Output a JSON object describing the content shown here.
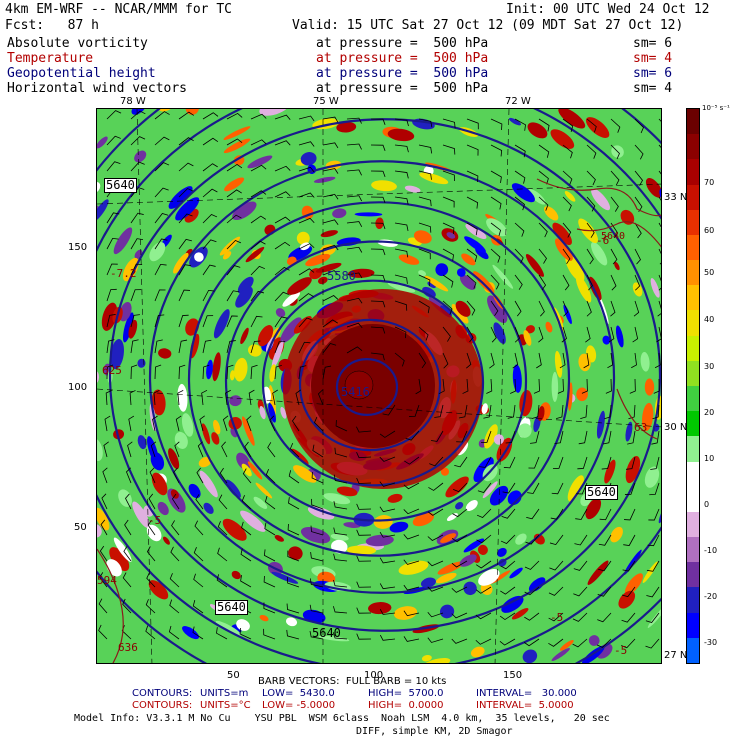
{
  "header": {
    "model": "4km EM-WRF -- NCAR/MMM for TC",
    "init": "Init: 00 UTC Wed 24 Oct 12",
    "fcst": "Fcst:   87 h",
    "valid": "Valid: 15 UTC Sat 27 Oct 12 (09 MDT Sat 27 Oct 12)"
  },
  "fields": [
    {
      "name": "Absolute vorticity",
      "level": "at pressure =  500 hPa",
      "sm": "sm= 6",
      "color": "#000000"
    },
    {
      "name": "Temperature",
      "level": "at pressure =  500 hPa",
      "sm": "sm= 4",
      "color": "#b20000"
    },
    {
      "name": "Geopotential height",
      "level": "at pressure =  500 hPa",
      "sm": "sm= 6",
      "color": "#00007a"
    },
    {
      "name": "Horizontal wind vectors",
      "level": "at pressure =  500 hPa",
      "sm": "sm= 4",
      "color": "#000000"
    }
  ],
  "axes": {
    "lon_labels": [
      "78 W",
      "75 W",
      "72 W"
    ],
    "lat_labels": [
      "33 N",
      "30 N",
      "27 N"
    ],
    "x_ticks": [
      "50",
      "100",
      "150"
    ],
    "y_ticks": [
      "150",
      "100",
      "50"
    ]
  },
  "colorbar": {
    "unit": "10⁻⁵ s⁻¹",
    "ticks": [
      "70",
      "60",
      "50",
      "40",
      "30",
      "20",
      "10",
      "0",
      "-10",
      "-20",
      "-30"
    ],
    "colors": [
      "#6b0000",
      "#8b0000",
      "#a80000",
      "#c81000",
      "#e83000",
      "#ff6000",
      "#ff9000",
      "#ffc000",
      "#f0e000",
      "#c8f000",
      "#90e020",
      "#40d040",
      "#00c800",
      "#90f090",
      "#ffffff",
      "#ffffff",
      "#e0b0e0",
      "#b070c0",
      "#7030a0",
      "#2020c0",
      "#0000ff",
      "#0060ff"
    ]
  },
  "contour_labels": [
    "5640",
    "5580",
    "5416",
    "5640",
    "5640",
    "5640",
    "5640",
    "-7.2",
    "625",
    "594",
    "636",
    "-5",
    "-6",
    "-5",
    "-5",
    "63"
  ],
  "footer": {
    "barb": "BARB VECTORS:  FULL BARB = 10 kts",
    "c1_label": "CONTOURS:",
    "c1_units": "UNITS=m",
    "c1_low": "LOW=  5430.0",
    "c1_high": "HIGH=  5700.0",
    "c1_int": "INTERVAL=   30.000",
    "c2_label": "CONTOURS:",
    "c2_units": "UNITS=°C",
    "c2_low": "LOW= -5.0000",
    "c2_high": "HIGH=  0.0000",
    "c2_int": "INTERVAL=  5.0000",
    "model_info": "Model Info: V3.3.1 M No Cu    YSU PBL  WSM 6class  Noah LSM  4.0 km,  35 levels,   20 sec",
    "model_info2": "DIFF, simple KM, 2D Smagor"
  }
}
